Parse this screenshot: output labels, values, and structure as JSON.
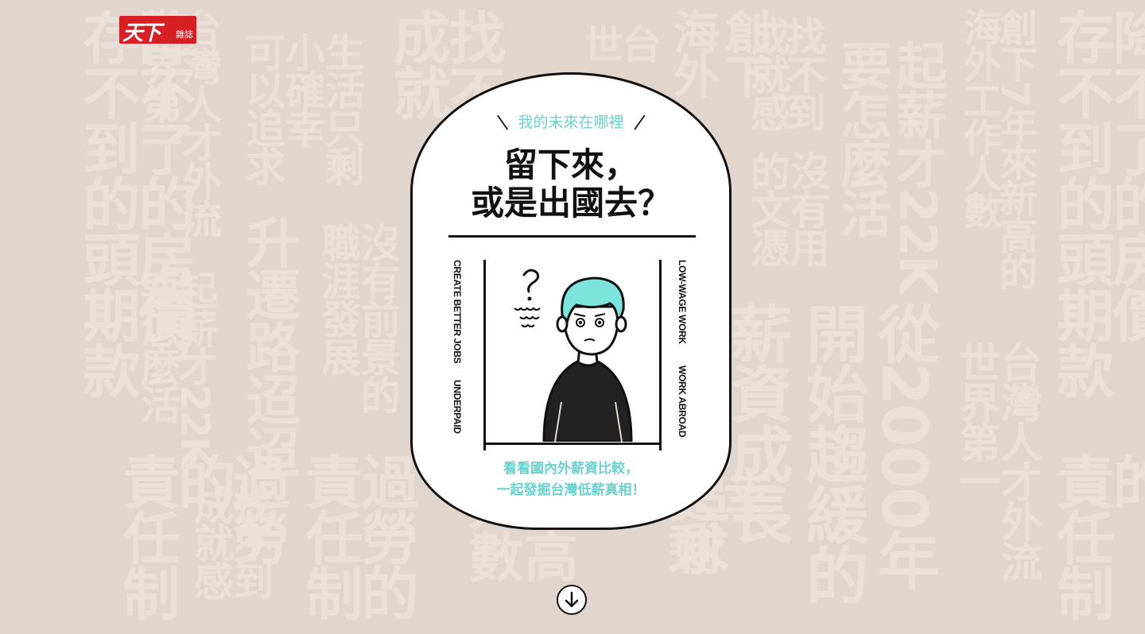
{
  "logo": {
    "text_main": "天下",
    "text_sub": "雜誌"
  },
  "hero": {
    "subtitle": "我的未來在哪裡",
    "title_line1": "留下來，",
    "title_line2": "或是出國去？",
    "side_left_1": "CREATE BETTER JOBS",
    "side_left_2": "UNDERPAID",
    "side_right_1": "LOW-WAGE WORK",
    "side_right_2": "WORK ABROAD",
    "caption_line1": "看看國內外薪資比較，",
    "caption_line2": "一起發掘台灣低薪真相！"
  },
  "scroll": {
    "icon": "arrow-down-icon"
  },
  "background_words": [
    "存降",
    "不不",
    "到了",
    "的的",
    "頭房",
    "期價",
    "款，",
    "世台",
    "界灣",
    "第人",
    "一才",
    "外",
    "流",
    "可小生",
    "以確活",
    "追幸只",
    "求",
    "剩",
    "成找",
    "就不",
    "感到",
    "升遷路迢迢",
    "職沒",
    "涯有",
    "發前",
    "展景",
    "的",
    "要起",
    "怎薪",
    "麼才",
    "活22",
    "K",
    "責的",
    "任",
    "制",
    "過勞",
    "成找",
    "就不",
    "感到",
    "責過",
    "任勞",
    "制的",
    "海創",
    "外下",
    "成找",
    "就不",
    "感到",
    "的沒",
    "文有",
    "憑用",
    "要起",
    "怎薪",
    "麼才",
    "活22",
    "K",
    "薪開從",
    "資始",
    "成趨",
    "長緩",
    "的",
    "2000年",
    "海創",
    "外下",
    "工7",
    "作年",
    "人來",
    "數新",
    "高",
    "的",
    "世台",
    "界灣",
    "第人",
    "一才",
    "外",
    "流",
    "存降",
    "不不",
    "到了",
    "的的",
    "頭房",
    "期價",
    "款，",
    "責的",
    "任",
    "制",
    "人",
    "數高",
    "追幸只",
    "求",
    "剩"
  ]
}
